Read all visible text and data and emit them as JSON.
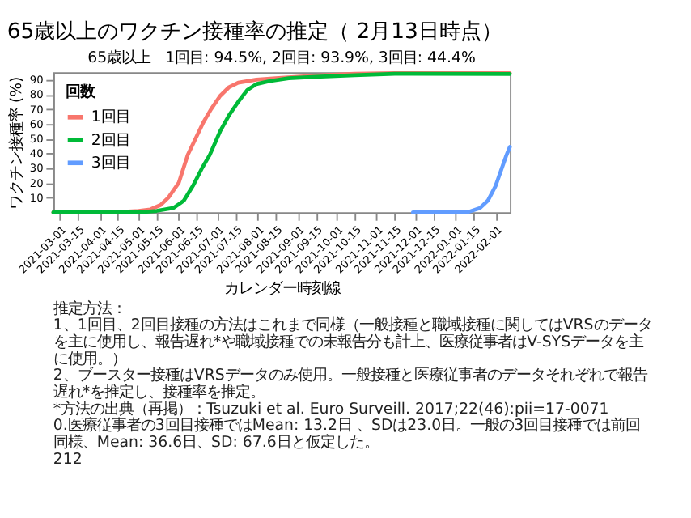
{
  "chart_data": {
    "type": "line",
    "title": "65歳以上のワクチン接種率の推定（ 2月13日時点）",
    "subtitle": "65歳以上　1回目: 94.5%, 2回目: 93.9%, 3回目: 44.4%",
    "xlabel": "カレンダー時刻線",
    "ylabel": "ワクチン接種率 (%)",
    "legend_title": "回数",
    "legend": "top left",
    "grid": false,
    "marker": "none",
    "line_style": "solid",
    "xlim": [
      "2021-02-24",
      "2022-02-12"
    ],
    "ylim": [
      0,
      95
    ],
    "yticks": [
      10,
      20,
      30,
      40,
      50,
      60,
      70,
      80,
      90
    ],
    "xticks": [
      "2021-03-01",
      "2021-03-15",
      "2021-04-01",
      "2021-04-15",
      "2021-05-01",
      "2021-05-15",
      "2021-06-01",
      "2021-06-15",
      "2021-07-01",
      "2021-07-15",
      "2021-08-01",
      "2021-08-15",
      "2021-09-01",
      "2021-09-15",
      "2021-10-01",
      "2021-10-15",
      "2021-11-01",
      "2021-11-15",
      "2021-12-01",
      "2021-12-15",
      "2022-01-01",
      "2022-01-15",
      "2022-02-01"
    ],
    "series": [
      {
        "name": "1回目",
        "color": "#f8766d",
        "x": [
          "2021-02-24",
          "2021-04-12",
          "2021-05-01",
          "2021-05-10",
          "2021-05-18",
          "2021-05-24",
          "2021-06-01",
          "2021-06-08",
          "2021-06-14",
          "2021-06-20",
          "2021-06-26",
          "2021-07-03",
          "2021-07-10",
          "2021-07-17",
          "2021-07-31",
          "2021-08-15",
          "2021-09-01",
          "2021-09-20",
          "2021-10-15",
          "2021-11-15",
          "2022-02-12"
        ],
        "values": [
          0,
          0,
          1,
          2,
          5,
          10,
          20,
          39,
          50,
          61,
          70,
          79,
          85,
          88,
          90,
          91,
          92,
          93,
          94,
          94.5,
          94.5
        ]
      },
      {
        "name": "2回目",
        "color": "#00ba38",
        "x": [
          "2021-02-24",
          "2021-05-01",
          "2021-05-15",
          "2021-05-28",
          "2021-06-05",
          "2021-06-12",
          "2021-06-19",
          "2021-06-25",
          "2021-07-03",
          "2021-07-10",
          "2021-07-17",
          "2021-07-24",
          "2021-07-31",
          "2021-08-10",
          "2021-08-25",
          "2021-09-15",
          "2021-10-15",
          "2021-11-15",
          "2022-02-12"
        ],
        "values": [
          0,
          0,
          1,
          3,
          8,
          18,
          30,
          39,
          55,
          66,
          75,
          83,
          87,
          89,
          91,
          92,
          93,
          94,
          93.9
        ]
      },
      {
        "name": "3回目",
        "color": "#619cff",
        "x": [
          "2021-11-29",
          "2022-01-10",
          "2022-01-20",
          "2022-01-26",
          "2022-02-01",
          "2022-02-05",
          "2022-02-09",
          "2022-02-12"
        ],
        "values": [
          0,
          0,
          3,
          8,
          18,
          28,
          38,
          44.4
        ]
      }
    ],
    "annotations": [
      "推定方法：",
      "1、1回目、2回目接種の方法はこれまで同様（一般接種と職域接種に関してはVRSのデータを主に使用し、報告遅れ*や職域接種での未報告分も計上、医療従事者はV-SYSデータを主に使用。）",
      "2、ブースター接種はVRSデータのみ使用。一般接種と医療従事者のデータそれぞれで報告遅れ*を推定し、接種率を推定。",
      "*方法の出典（再掲）：Tsuzuki et al. Euro Surveill. 2017;22(46):pii=17-00710.医療従事者の3回目接種ではMean: 13.2日 、SDは23.0日。一般の3回目接種では前回同様、Mean: 36.6日、SD: 67.6日と仮定した。",
      "212"
    ]
  }
}
